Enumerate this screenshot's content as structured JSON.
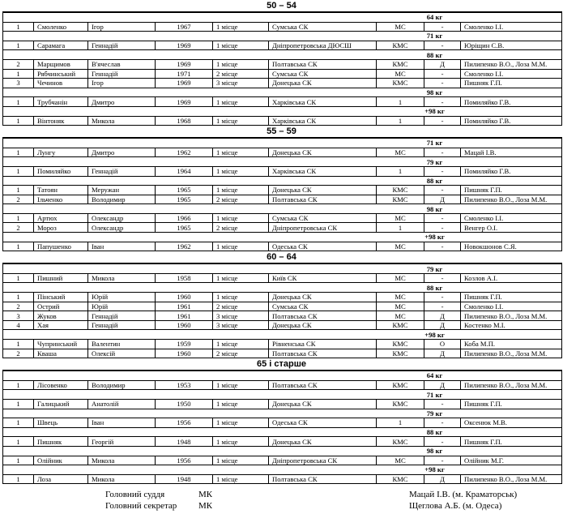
{
  "sections": [
    {
      "title": "50 – 54",
      "categories": [
        {
          "weight": "64 кг",
          "rows": [
            [
              "1",
              "Смоленко",
              "Ігор",
              "1967",
              "1 місце",
              "Сумська СК",
              "МС",
              "-",
              "Смоленко І.І."
            ]
          ]
        },
        {
          "weight": "71 кг",
          "rows": [
            [
              "1",
              "Сарамага",
              "Геннадій",
              "1969",
              "1 місце",
              "Дніпропетровська ДЮСШ",
              "КМС",
              "-",
              "Юріщин С.В."
            ]
          ]
        },
        {
          "weight": "88 кг",
          "rows": [
            [
              "2",
              "Марщимов",
              "В'ячеслав",
              "1969",
              "1 місце",
              "Полтавська СК",
              "КМС",
              "Д",
              "Пилипенко В.О., Лоза М.М."
            ],
            [
              "1",
              "Рябчинський",
              "Геннадій",
              "1971",
              "2 місце",
              "Сумська СК",
              "МС",
              "-",
              "Смоленко І.І."
            ],
            [
              "3",
              "Чечинов",
              "Ігор",
              "1969",
              "3 місце",
              "Донецька СК",
              "КМС",
              "-",
              "Пишняк Г.П."
            ]
          ]
        },
        {
          "weight": "98 кг",
          "rows": [
            [
              "1",
              "Трубчанін",
              "Дмитро",
              "1969",
              "1 місце",
              "Харківська СК",
              "1",
              "-",
              "Помиляйко Г.В."
            ]
          ]
        },
        {
          "weight": "+98 кг",
          "rows": [
            [
              "1",
              "Вінтоняк",
              "Микола",
              "1968",
              "1 місце",
              "Харківська СК",
              "1",
              "-",
              "Помиляйко Г.В."
            ]
          ]
        }
      ]
    },
    {
      "title": "55 – 59",
      "categories": [
        {
          "weight": "71 кг",
          "rows": [
            [
              "1",
              "Лунгу",
              "Дмитро",
              "1962",
              "1 місце",
              "Донецька СК",
              "МС",
              "-",
              "Мацай І.В."
            ]
          ]
        },
        {
          "weight": "79 кг",
          "rows": [
            [
              "1",
              "Помиляйко",
              "Геннадій",
              "1964",
              "1 місце",
              "Харківська СК",
              "1",
              "-",
              "Помиляйко Г.В."
            ]
          ]
        },
        {
          "weight": "88 кг",
          "rows": [
            [
              "1",
              "Татоян",
              "Меружан",
              "1965",
              "1 місце",
              "Донецька СК",
              "КМС",
              "-",
              "Пишняк Г.П."
            ],
            [
              "2",
              "Ільченко",
              "Володимир",
              "1965",
              "2 місце",
              "Полтавська СК",
              "КМС",
              "Д",
              "Пилипенко В.О., Лоза М.М."
            ]
          ]
        },
        {
          "weight": "98 кг",
          "rows": [
            [
              "1",
              "Артюх",
              "Олександр",
              "1966",
              "1 місце",
              "Сумська СК",
              "МС",
              "-",
              "Смоленко І.І."
            ],
            [
              "2",
              "Мороз",
              "Олександр",
              "1965",
              "2 місце",
              "Дніпропетровська СК",
              "1",
              "-",
              "Венгер О.І."
            ]
          ]
        },
        {
          "weight": "+98 кг",
          "rows": [
            [
              "1",
              "Папушенко",
              "Іван",
              "1962",
              "1 місце",
              "Одеська СК",
              "МС",
              "-",
              "Новокшонов С.Я."
            ]
          ]
        }
      ]
    },
    {
      "title": "60 – 64",
      "categories": [
        {
          "weight": "79 кг",
          "rows": [
            [
              "1",
              "Пишний",
              "Микола",
              "1958",
              "1 місце",
              "Київ СК",
              "МС",
              "-",
              "Козлов А.І."
            ]
          ]
        },
        {
          "weight": "88 кг",
          "rows": [
            [
              "1",
              "Пінський",
              "Юрій",
              "1960",
              "1 місце",
              "Донецька СК",
              "МС",
              "-",
              "Пишняк Г.П."
            ],
            [
              "2",
              "Острий",
              "Юрій",
              "1961",
              "2 місце",
              "Сумська СК",
              "МС",
              "-",
              "Смоленко І.І."
            ],
            [
              "3",
              "Жуков",
              "Геннадій",
              "1961",
              "3 місце",
              "Полтавська СК",
              "МС",
              "Д",
              "Пилипенко В.О., Лоза М.М."
            ],
            [
              "4",
              "Хая",
              "Геннадій",
              "1960",
              "3 місце",
              "Донецька СК",
              "КМС",
              "Д",
              "Костенко М.І."
            ]
          ]
        },
        {
          "weight": "+98 кг",
          "rows": [
            [
              "1",
              "Чупринський",
              "Валентин",
              "1959",
              "1 місце",
              "Рівненська СК",
              "КМС",
              "О",
              "Коба М.П."
            ],
            [
              "2",
              "Кваша",
              "Олексій",
              "1960",
              "2 місце",
              "Полтавська СК",
              "КМС",
              "Д",
              "Пилипенко В.О., Лоза М.М."
            ]
          ]
        }
      ]
    },
    {
      "title": "65 і старше",
      "categories": [
        {
          "weight": "64 кг",
          "rows": [
            [
              "1",
              "Лісовенко",
              "Володимир",
              "1953",
              "1 місце",
              "Полтавська СК",
              "КМС",
              "Д",
              "Пилипенко В.О., Лоза М.М."
            ]
          ]
        },
        {
          "weight": "71 кг",
          "rows": [
            [
              "1",
              "Галицький",
              "Анатолій",
              "1950",
              "1 місце",
              "Донецька СК",
              "КМС",
              "-",
              "Пишняк Г.П."
            ]
          ]
        },
        {
          "weight": "79 кг",
          "rows": [
            [
              "1",
              "Швець",
              "Іван",
              "1956",
              "1 місце",
              "Одеська СК",
              "1",
              "-",
              "Оксенюк М.В."
            ]
          ]
        },
        {
          "weight": "88 кг",
          "rows": [
            [
              "1",
              "Пишняк",
              "Георгій",
              "1948",
              "1 місце",
              "Донецька СК",
              "КМС",
              "-",
              "Пишняк Г.П."
            ]
          ]
        },
        {
          "weight": "98 кг",
          "rows": [
            [
              "1",
              "Олійник",
              "Микола",
              "1956",
              "1 місце",
              "Дніпропетровська СК",
              "МС",
              "-",
              "Олійник М.Г."
            ]
          ]
        },
        {
          "weight": "+98 кг",
          "rows": [
            [
              "1",
              "Лоза",
              "Микола",
              "1948",
              "1 місце",
              "Полтавська СК",
              "КМС",
              "Д",
              "Пилипенко В.О., Лоза М.М."
            ]
          ]
        }
      ]
    }
  ],
  "footer": {
    "judge": {
      "role": "Головний суддя",
      "rank": "МК",
      "name": "Мацай І.В. (м. Краматорськ)"
    },
    "secretary": {
      "role": "Головний секретар",
      "rank": "МК",
      "name": "Щеглова А.Б. (м. Одеса)"
    }
  }
}
